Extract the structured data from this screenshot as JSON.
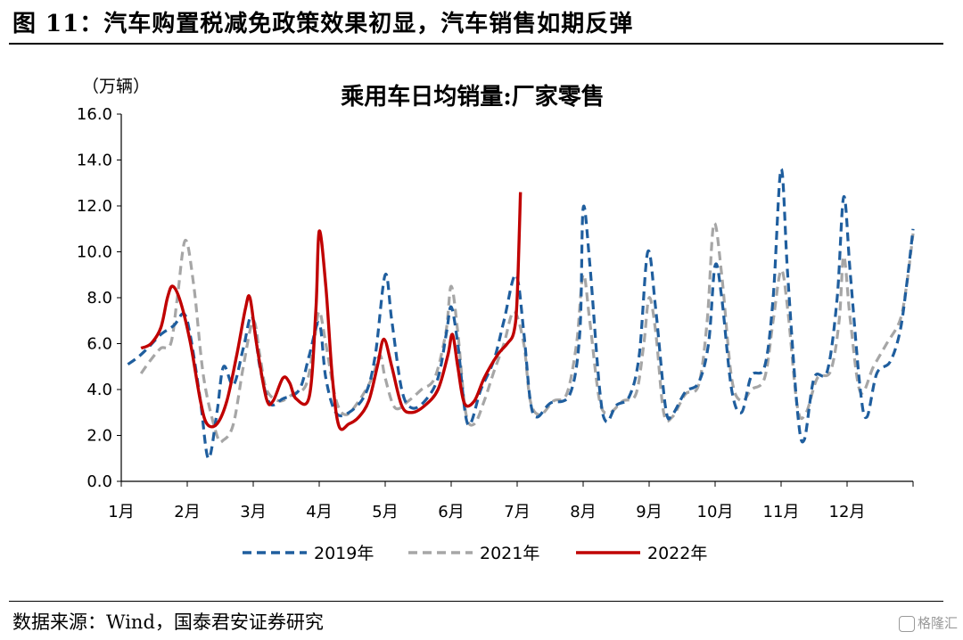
{
  "figure": {
    "title": "图 11：汽车购置税减免政策效果初显，汽车销售如期反弹",
    "source": "数据来源：Wind，国泰君安证券研究",
    "watermark": "格隆汇"
  },
  "chart_data": {
    "type": "line",
    "title": "乘用车日均销量:厂家零售",
    "unit_label": "（万辆）",
    "ylim": [
      0,
      16
    ],
    "y_ticks": [
      "0.0",
      "2.0",
      "4.0",
      "6.0",
      "8.0",
      "10.0",
      "12.0",
      "14.0",
      "16.0"
    ],
    "x_range": [
      0,
      12
    ],
    "categories": [
      "1月",
      "2月",
      "3月",
      "4月",
      "5月",
      "6月",
      "7月",
      "8月",
      "9月",
      "10月",
      "11月",
      "12月"
    ],
    "legend_position": "bottom",
    "grid": false,
    "series": [
      {
        "name": "2019年",
        "color": "#1f5e9e",
        "style": "dashed",
        "points": [
          [
            0.1,
            5.1
          ],
          [
            0.25,
            5.4
          ],
          [
            0.4,
            5.8
          ],
          [
            0.6,
            6.4
          ],
          [
            0.8,
            6.8
          ],
          [
            0.95,
            7.3
          ],
          [
            1.05,
            6.3
          ],
          [
            1.2,
            3.5
          ],
          [
            1.32,
            1.0
          ],
          [
            1.45,
            3.0
          ],
          [
            1.55,
            5.0
          ],
          [
            1.7,
            4.2
          ],
          [
            1.85,
            5.8
          ],
          [
            1.98,
            7.2
          ],
          [
            2.1,
            5.0
          ],
          [
            2.25,
            3.4
          ],
          [
            2.45,
            3.6
          ],
          [
            2.7,
            4.0
          ],
          [
            2.85,
            5.5
          ],
          [
            3.0,
            6.9
          ],
          [
            3.1,
            4.5
          ],
          [
            3.25,
            3.0
          ],
          [
            3.45,
            3.0
          ],
          [
            3.7,
            3.8
          ],
          [
            3.85,
            5.5
          ],
          [
            4.0,
            9.0
          ],
          [
            4.1,
            7.0
          ],
          [
            4.25,
            4.0
          ],
          [
            4.4,
            3.2
          ],
          [
            4.6,
            3.5
          ],
          [
            4.8,
            4.5
          ],
          [
            4.93,
            6.5
          ],
          [
            5.0,
            7.6
          ],
          [
            5.1,
            6.0
          ],
          [
            5.25,
            2.5
          ],
          [
            5.45,
            4.0
          ],
          [
            5.65,
            5.3
          ],
          [
            5.8,
            7.0
          ],
          [
            5.98,
            9.0
          ],
          [
            6.1,
            6.5
          ],
          [
            6.2,
            3.5
          ],
          [
            6.3,
            2.8
          ],
          [
            6.5,
            3.4
          ],
          [
            6.8,
            3.8
          ],
          [
            6.95,
            6.5
          ],
          [
            7.0,
            11.9
          ],
          [
            7.1,
            9.5
          ],
          [
            7.25,
            4.0
          ],
          [
            7.35,
            2.6
          ],
          [
            7.5,
            3.3
          ],
          [
            7.7,
            3.7
          ],
          [
            7.85,
            5.5
          ],
          [
            7.98,
            10.0
          ],
          [
            8.1,
            7.5
          ],
          [
            8.25,
            3.2
          ],
          [
            8.35,
            2.9
          ],
          [
            8.55,
            3.9
          ],
          [
            8.75,
            4.3
          ],
          [
            8.9,
            6.0
          ],
          [
            9.0,
            9.4
          ],
          [
            9.1,
            8.0
          ],
          [
            9.25,
            4.0
          ],
          [
            9.4,
            3.0
          ],
          [
            9.55,
            4.6
          ],
          [
            9.75,
            5.0
          ],
          [
            9.88,
            8.0
          ],
          [
            10.0,
            13.6
          ],
          [
            10.1,
            9.0
          ],
          [
            10.25,
            3.0
          ],
          [
            10.35,
            1.8
          ],
          [
            10.5,
            4.5
          ],
          [
            10.7,
            4.8
          ],
          [
            10.85,
            8.0
          ],
          [
            10.95,
            12.4
          ],
          [
            11.05,
            9.0
          ],
          [
            11.2,
            4.0
          ],
          [
            11.3,
            2.8
          ],
          [
            11.45,
            4.7
          ],
          [
            11.65,
            5.2
          ],
          [
            11.8,
            6.5
          ],
          [
            11.9,
            8.5
          ],
          [
            12.0,
            11.0
          ]
        ]
      },
      {
        "name": "2021年",
        "color": "#a6a6a6",
        "style": "dashed",
        "points": [
          [
            0.3,
            4.7
          ],
          [
            0.45,
            5.3
          ],
          [
            0.6,
            5.8
          ],
          [
            0.75,
            6.0
          ],
          [
            0.85,
            8.0
          ],
          [
            0.97,
            10.5
          ],
          [
            1.1,
            8.5
          ],
          [
            1.25,
            4.5
          ],
          [
            1.45,
            2.0
          ],
          [
            1.55,
            1.8
          ],
          [
            1.7,
            2.5
          ],
          [
            1.85,
            5.0
          ],
          [
            2.0,
            7.0
          ],
          [
            2.1,
            5.5
          ],
          [
            2.2,
            4.0
          ],
          [
            2.4,
            3.5
          ],
          [
            2.6,
            3.8
          ],
          [
            2.8,
            4.2
          ],
          [
            2.92,
            6.0
          ],
          [
            3.0,
            7.4
          ],
          [
            3.1,
            6.0
          ],
          [
            3.25,
            3.6
          ],
          [
            3.4,
            2.9
          ],
          [
            3.6,
            3.5
          ],
          [
            3.8,
            4.5
          ],
          [
            3.92,
            5.5
          ],
          [
            4.0,
            4.5
          ],
          [
            4.15,
            3.2
          ],
          [
            4.35,
            3.5
          ],
          [
            4.55,
            4.0
          ],
          [
            4.75,
            4.5
          ],
          [
            4.92,
            6.5
          ],
          [
            5.0,
            8.5
          ],
          [
            5.1,
            6.5
          ],
          [
            5.22,
            3.0
          ],
          [
            5.35,
            2.5
          ],
          [
            5.5,
            3.5
          ],
          [
            5.65,
            4.8
          ],
          [
            5.8,
            6.0
          ],
          [
            5.95,
            7.4
          ],
          [
            6.1,
            6.0
          ],
          [
            6.2,
            3.5
          ],
          [
            6.35,
            2.9
          ],
          [
            6.55,
            3.5
          ],
          [
            6.75,
            3.8
          ],
          [
            6.9,
            6.0
          ],
          [
            7.0,
            9.0
          ],
          [
            7.1,
            7.0
          ],
          [
            7.25,
            3.5
          ],
          [
            7.4,
            3.0
          ],
          [
            7.6,
            3.5
          ],
          [
            7.8,
            3.8
          ],
          [
            7.92,
            6.0
          ],
          [
            8.0,
            8.0
          ],
          [
            8.1,
            6.5
          ],
          [
            8.22,
            3.0
          ],
          [
            8.35,
            2.8
          ],
          [
            8.55,
            3.8
          ],
          [
            8.75,
            4.2
          ],
          [
            8.88,
            7.0
          ],
          [
            8.98,
            11.2
          ],
          [
            9.1,
            9.0
          ],
          [
            9.25,
            4.5
          ],
          [
            9.4,
            3.5
          ],
          [
            9.55,
            4.0
          ],
          [
            9.75,
            4.5
          ],
          [
            9.88,
            7.0
          ],
          [
            10.0,
            9.2
          ],
          [
            10.1,
            7.5
          ],
          [
            10.25,
            3.2
          ],
          [
            10.38,
            3.0
          ],
          [
            10.55,
            4.5
          ],
          [
            10.75,
            4.8
          ],
          [
            10.88,
            7.0
          ],
          [
            10.95,
            9.8
          ],
          [
            11.05,
            7.0
          ],
          [
            11.2,
            3.9
          ],
          [
            11.4,
            5.0
          ],
          [
            11.6,
            6.0
          ],
          [
            11.8,
            7.0
          ],
          [
            11.9,
            8.5
          ],
          [
            12.0,
            10.8
          ]
        ]
      },
      {
        "name": "2022年",
        "color": "#c00000",
        "style": "solid",
        "points": [
          [
            0.3,
            5.8
          ],
          [
            0.45,
            6.0
          ],
          [
            0.6,
            6.7
          ],
          [
            0.7,
            8.0
          ],
          [
            0.78,
            8.5
          ],
          [
            0.9,
            7.8
          ],
          [
            1.05,
            6.0
          ],
          [
            1.2,
            3.5
          ],
          [
            1.3,
            2.5
          ],
          [
            1.45,
            2.5
          ],
          [
            1.6,
            3.5
          ],
          [
            1.75,
            5.5
          ],
          [
            1.88,
            7.5
          ],
          [
            1.95,
            8.0
          ],
          [
            2.05,
            6.0
          ],
          [
            2.2,
            3.6
          ],
          [
            2.3,
            3.5
          ],
          [
            2.45,
            4.5
          ],
          [
            2.55,
            4.3
          ],
          [
            2.65,
            3.6
          ],
          [
            2.85,
            3.7
          ],
          [
            2.95,
            7.5
          ],
          [
            3.0,
            10.9
          ],
          [
            3.1,
            8.5
          ],
          [
            3.2,
            4.5
          ],
          [
            3.3,
            2.4
          ],
          [
            3.45,
            2.5
          ],
          [
            3.6,
            2.8
          ],
          [
            3.75,
            3.5
          ],
          [
            3.88,
            5.0
          ],
          [
            3.98,
            6.2
          ],
          [
            4.1,
            5.0
          ],
          [
            4.25,
            3.3
          ],
          [
            4.4,
            3.0
          ],
          [
            4.6,
            3.3
          ],
          [
            4.8,
            4.0
          ],
          [
            4.95,
            5.5
          ],
          [
            5.02,
            6.4
          ],
          [
            5.1,
            5.0
          ],
          [
            5.2,
            3.4
          ],
          [
            5.35,
            3.5
          ],
          [
            5.5,
            4.5
          ],
          [
            5.7,
            5.5
          ],
          [
            5.85,
            6.0
          ],
          [
            5.95,
            6.5
          ],
          [
            6.0,
            8.0
          ],
          [
            6.05,
            12.6
          ]
        ]
      }
    ]
  }
}
